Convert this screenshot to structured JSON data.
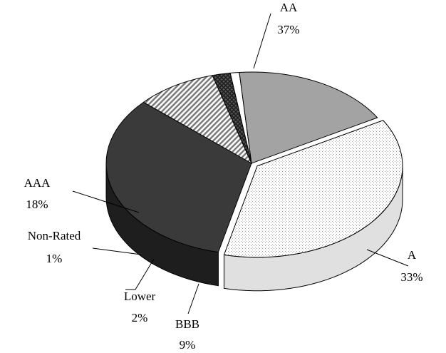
{
  "chart_data": {
    "type": "pie",
    "title": "",
    "style": "3d-exploded-oval",
    "slices": [
      {
        "label": "AA",
        "value": 37,
        "display": "37%",
        "fill": "dots",
        "color": "#f4f4f4"
      },
      {
        "label": "A",
        "value": 33,
        "display": "33%",
        "fill": "solid",
        "color": "#3a3a3a"
      },
      {
        "label": "BBB",
        "value": 9,
        "display": "9%",
        "fill": "hatch",
        "color": "#9a9a9a"
      },
      {
        "label": "Lower",
        "value": 2,
        "display": "2%",
        "fill": "crosshatch",
        "color": "#444444"
      },
      {
        "label": "Non-Rated",
        "value": 1,
        "display": "1%",
        "fill": "solid",
        "color": "#ffffff"
      },
      {
        "label": "AAA",
        "value": 18,
        "display": "18%",
        "fill": "solid",
        "color": "#a3a3a3"
      }
    ],
    "legend": "none"
  }
}
